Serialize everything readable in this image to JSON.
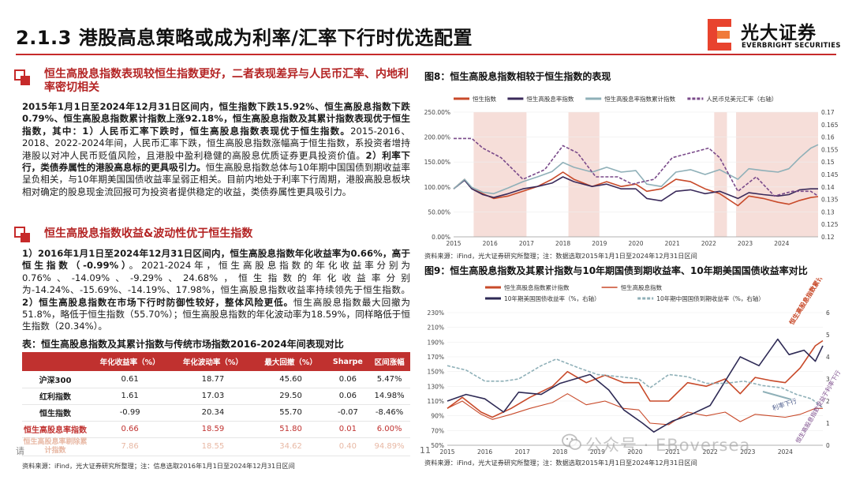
{
  "header": {
    "title": "2.1.3 港股高息策略或成为利率/汇率下行时优选配置",
    "logo_cn": "光大证券",
    "logo_en": "EVERBRIGHT SECURITIES",
    "brand_color": "#c62a2a"
  },
  "section1": {
    "heading": "恒生高股息指数表现较恒生指数更好，二者表现差异与人民币汇率、内地利率密切相关",
    "bold1": "2015年1月1日至2024年12月31日区间内，恒生指数下跌15.92%、恒生高股息指数下跌0.79%、恒生高股息指数累计指数上涨92.18%，恒生高股息指数及其累计指数表现优于恒生指数，其中：1）人民币汇率下跌时，恒生高股息指数表现优于恒生指数。",
    "normal1": "2015-2016、2018、2022-2024年间，人民币汇率下跌，恒生高股息指数涨幅高于恒生指数，系投资者增持港股以对冲人民币贬值风险，且港股中盈利稳健的高股息优质证券更具投资价值。",
    "bold2": "2）利率下行，类债券属性的港股高息标的更具吸引力。",
    "normal2": "恒生高股息指数总体与10年期中国国债到期收益率呈负相关，与10年期美国国债收益率呈弱正相关。目前内地处于利率下行周期，港股高股息板块相对确定的股息现金流回报可为投资者提供稳定的收益，类债券属性更具吸引力。"
  },
  "section2": {
    "heading": "恒生高股息指数收益&波动性优于恒生指数",
    "bold1": "1）2016年1月1日至2024年12月31日区间内，恒生高股息指数年化收益率为0.66%，高于恒生指数（-0.99%）",
    "normal1": "。2021-2024年，恒生高股息指数的年化收益率分别为0.76%、-14.09%、-9.29%、24.68%，恒生指数的年化收益率分别为-14.24%、-15.69%、-14.19%、17.98%，恒生高股息指数收益率持续领先于恒生指数。",
    "bold2": "2）恒生高股息指数在市场下行时防御性较好，整体风险更低。",
    "normal2": "恒生高股息指数最大回撤为51.8%，略低于恒生指数（55.70%）；恒生高股息指数的年化波动率为18.59%，同样略低于恒生指数（20.34%）。"
  },
  "table": {
    "title": "表：恒生高股息指数及其累计指数与传统市场指数2016-2024年间表现对比",
    "headers": [
      "",
      "年化收益率（%）",
      "年化波动率（%）",
      "最大回撤（%）",
      "Sharpe",
      "区间涨幅"
    ],
    "rows": [
      [
        "沪深300",
        "0.61",
        "18.77",
        "45.60",
        "0.06",
        "5.47%"
      ],
      [
        "红利指数",
        "1.61",
        "17.03",
        "29.50",
        "0.06",
        "14.98%"
      ],
      [
        "恒生指数",
        "-0.99",
        "20.34",
        "55.70",
        "-0.07",
        "-8.46%"
      ],
      [
        "恒生高股息率指数",
        "0.66",
        "18.59",
        "51.80",
        "0.01",
        "6.00%"
      ],
      [
        "恒生高股息率剔除累计指数",
        "7.86",
        "18.55",
        "34.62",
        "0.40",
        "94.89%"
      ]
    ],
    "source": "资料来源：iFind，光大证券研究所整理；注：信息选取2016年1月1日至2024年12月31日区间"
  },
  "fig8": {
    "title": "图8：恒生高股息指数相较于恒生指数的表现",
    "source": "资料来源：iFind，光大证券研究所整理；注：数据选取2015年1月1日至2024年12月31日区间"
  },
  "fig9": {
    "title": "图9：恒生高股息指数及其累计指数与10年期国债到期收益率、10年期美国国债收益率对比",
    "annot1": "恒生高股息指数累计指数上涨",
    "annot2": "利率下行",
    "annot3": "恒生高股息指数受益于利率下行",
    "source": "资料来源：iFind，光大证券研究所整理；注：数据选取2015年1月1日至2024年12月31日区间"
  },
  "watermark": "公众号 · EBoversea",
  "page_number": "11",
  "left_fragment": "请",
  "chart_data": [
    {
      "type": "line",
      "title": "",
      "legend": "top",
      "y_left_ticks": [
        "0.00%",
        "50.00%",
        "100.00%",
        "150.00%",
        "200.00%",
        "250.00%"
      ],
      "y_right_ticks": [
        "0.12",
        "0.125",
        "0.13",
        "0.135",
        "0.14",
        "0.145",
        "0.15",
        "0.155",
        "0.16",
        "0.165",
        "0.17"
      ],
      "ylim": [
        0,
        2.6
      ],
      "y2lim": [
        0.12,
        0.172
      ],
      "x_ticks": [
        "2015",
        "2016",
        "2017",
        "2018",
        "2019",
        "2020",
        "2021",
        "2022",
        "2023",
        "2024"
      ],
      "xlim": [
        2015,
        2025
      ],
      "shaded_periods": [
        [
          2015.55,
          2017.0
        ],
        [
          2018.15,
          2019.0
        ],
        [
          2022.15,
          2022.5
        ],
        [
          2022.75,
          2025.0
        ]
      ],
      "series": [
        {
          "name": "恒生指数",
          "color": "#c84a2a",
          "axis": "left",
          "x": [
            2015,
            2015.3,
            2015.5,
            2015.8,
            2016.1,
            2016.5,
            2016.9,
            2017.3,
            2017.7,
            2018.0,
            2018.3,
            2018.8,
            2019.2,
            2019.6,
            2020.0,
            2020.3,
            2020.7,
            2021.1,
            2021.5,
            2021.9,
            2022.3,
            2022.8,
            2023.1,
            2023.5,
            2023.9,
            2024.2,
            2024.5,
            2024.8,
            2025.0
          ],
          "y": [
            1.0,
            1.2,
            1.0,
            0.9,
            0.8,
            0.85,
            0.95,
            1.05,
            1.2,
            1.35,
            1.2,
            1.05,
            1.15,
            1.05,
            1.1,
            0.95,
            1.0,
            1.2,
            1.15,
            1.0,
            0.9,
            0.65,
            0.85,
            0.8,
            0.72,
            0.68,
            0.76,
            0.82,
            0.84
          ]
        },
        {
          "name": "恒生高股息率指数",
          "color": "#3a2a5a",
          "axis": "left",
          "x": [
            2015,
            2015.3,
            2015.5,
            2015.8,
            2016.1,
            2016.5,
            2016.9,
            2017.3,
            2017.7,
            2018.0,
            2018.3,
            2018.8,
            2019.2,
            2019.6,
            2020.0,
            2020.3,
            2020.7,
            2021.1,
            2021.5,
            2021.9,
            2022.3,
            2022.8,
            2023.1,
            2023.5,
            2023.9,
            2024.2,
            2024.5,
            2024.8,
            2025.0
          ],
          "y": [
            1.0,
            1.18,
            1.0,
            0.88,
            0.82,
            0.9,
            1.0,
            1.05,
            1.12,
            1.25,
            1.15,
            1.05,
            1.1,
            1.0,
            1.0,
            0.8,
            0.75,
            0.95,
            0.98,
            0.9,
            0.95,
            0.8,
            0.92,
            0.88,
            0.85,
            0.88,
            0.98,
            1.0,
            1.0
          ]
        },
        {
          "name": "恒生高股息率指数累计指数",
          "color": "#8fb0b8",
          "axis": "left",
          "x": [
            2015,
            2015.3,
            2015.5,
            2015.8,
            2016.1,
            2016.5,
            2016.9,
            2017.3,
            2017.7,
            2018.0,
            2018.3,
            2018.8,
            2019.2,
            2019.6,
            2020.0,
            2020.3,
            2020.7,
            2021.1,
            2021.5,
            2021.9,
            2022.3,
            2022.8,
            2023.1,
            2023.5,
            2023.9,
            2024.2,
            2024.5,
            2024.8,
            2025.0
          ],
          "y": [
            1.0,
            1.2,
            1.03,
            0.93,
            0.9,
            1.02,
            1.15,
            1.25,
            1.36,
            1.55,
            1.45,
            1.35,
            1.45,
            1.35,
            1.38,
            1.1,
            1.05,
            1.35,
            1.4,
            1.3,
            1.4,
            1.2,
            1.42,
            1.38,
            1.35,
            1.42,
            1.65,
            1.85,
            1.92
          ]
        },
        {
          "name": "人民币兑美元汇率（右轴）",
          "color": "#7a4a8a",
          "axis": "right",
          "dashed": true,
          "x": [
            2015,
            2015.5,
            2015.8,
            2016.3,
            2016.9,
            2017.5,
            2018.0,
            2018.4,
            2018.9,
            2019.5,
            2019.9,
            2020.5,
            2021.0,
            2021.5,
            2022.0,
            2022.3,
            2022.8,
            2023.3,
            2023.8,
            2024.3,
            2024.8,
            2025.0
          ],
          "y": [
            0.161,
            0.161,
            0.157,
            0.153,
            0.144,
            0.148,
            0.158,
            0.155,
            0.145,
            0.145,
            0.142,
            0.144,
            0.153,
            0.155,
            0.157,
            0.153,
            0.139,
            0.145,
            0.137,
            0.139,
            0.139,
            0.137
          ]
        }
      ]
    },
    {
      "type": "line",
      "title": "",
      "legend": "top",
      "y_left_ticks": [
        "50%",
        "70%",
        "90%",
        "110%",
        "130%",
        "150%",
        "170%",
        "190%",
        "210%",
        "230%"
      ],
      "y_right_ticks": [
        "0",
        "1",
        "2",
        "3",
        "4",
        "5",
        "6"
      ],
      "ylim": [
        0.5,
        2.3
      ],
      "y2lim": [
        0,
        6
      ],
      "x_ticks": [
        "2015",
        "2016",
        "2017",
        "2018",
        "2019",
        "2020",
        "2021",
        "2022",
        "2023",
        "2024"
      ],
      "xlim": [
        2015,
        2025
      ],
      "series": [
        {
          "name": "恒生高股息指数累计指数",
          "color": "#c84a2a",
          "axis": "left",
          "x": [
            2015,
            2015.4,
            2015.9,
            2016.2,
            2016.7,
            2017.2,
            2017.8,
            2018.2,
            2018.7,
            2019.2,
            2019.7,
            2020.1,
            2020.4,
            2020.9,
            2021.4,
            2021.9,
            2022.4,
            2022.8,
            2023.2,
            2023.6,
            2024.0,
            2024.4,
            2024.8,
            2025.0
          ],
          "y": [
            1.0,
            1.15,
            0.95,
            0.88,
            1.0,
            1.15,
            1.3,
            1.5,
            1.35,
            1.45,
            1.35,
            1.35,
            1.1,
            1.1,
            1.35,
            1.3,
            1.4,
            1.2,
            1.42,
            1.38,
            1.35,
            1.55,
            1.85,
            1.92
          ]
        },
        {
          "name": "恒生高股息指数",
          "color": "#c84a2a",
          "axis": "left",
          "thin": true,
          "x": [
            2015,
            2015.4,
            2015.9,
            2016.2,
            2016.7,
            2017.2,
            2017.8,
            2018.2,
            2018.7,
            2019.2,
            2019.7,
            2020.1,
            2020.4,
            2020.9,
            2021.4,
            2021.9,
            2022.4,
            2022.8,
            2023.2,
            2023.6,
            2024.0,
            2024.4,
            2024.8,
            2025.0
          ],
          "y": [
            1.0,
            1.1,
            0.92,
            0.85,
            0.92,
            1.0,
            1.08,
            1.2,
            1.05,
            1.1,
            1.0,
            0.98,
            0.8,
            0.78,
            0.95,
            0.9,
            0.95,
            0.82,
            0.92,
            0.9,
            0.88,
            0.92,
            1.0,
            1.0
          ]
        },
        {
          "name": "10年期美国国债收益率（%，右轴）",
          "color": "#2e2a55",
          "axis": "right",
          "x": [
            2015,
            2015.5,
            2016.0,
            2016.5,
            2016.9,
            2017.5,
            2018.0,
            2018.8,
            2019.3,
            2019.7,
            2020.2,
            2020.5,
            2021.0,
            2021.5,
            2022.0,
            2022.4,
            2022.8,
            2023.3,
            2023.8,
            2024.1,
            2024.5,
            2024.8,
            2025.0
          ],
          "y": [
            2.0,
            2.3,
            2.1,
            1.5,
            2.4,
            2.3,
            2.8,
            3.2,
            2.5,
            1.6,
            1.0,
            0.6,
            1.1,
            1.4,
            1.8,
            2.9,
            4.0,
            3.6,
            4.8,
            4.1,
            4.3,
            3.8,
            4.5
          ]
        },
        {
          "name": "10年期中国国债到期收益率（%，右轴）",
          "color": "#8fb0b8",
          "axis": "right",
          "dashed": true,
          "x": [
            2015,
            2015.5,
            2016.0,
            2016.5,
            2016.9,
            2017.5,
            2017.9,
            2018.5,
            2019.0,
            2019.6,
            2020.1,
            2020.4,
            2020.9,
            2021.4,
            2021.9,
            2022.4,
            2022.9,
            2023.4,
            2023.9,
            2024.3,
            2024.7,
            2025.0
          ],
          "y": [
            3.6,
            3.4,
            2.9,
            2.9,
            3.0,
            3.6,
            3.9,
            3.5,
            3.2,
            3.1,
            3.0,
            2.6,
            3.2,
            3.1,
            2.8,
            2.8,
            2.9,
            2.7,
            2.6,
            2.3,
            2.1,
            1.7
          ]
        }
      ]
    }
  ]
}
